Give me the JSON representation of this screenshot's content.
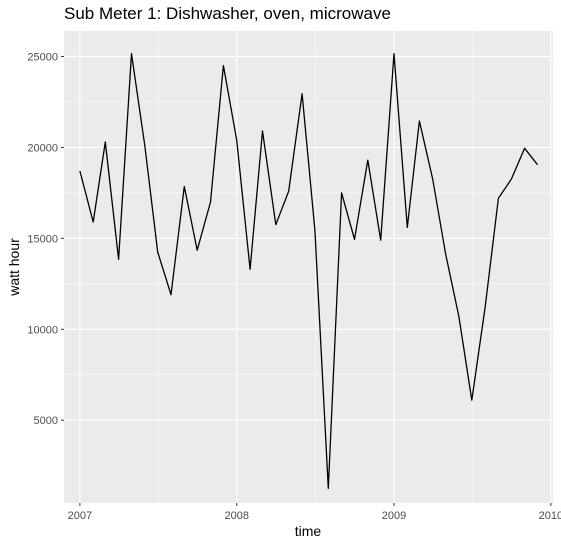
{
  "chart_data": {
    "type": "line",
    "title": "Sub Meter 1: Dishwasher, oven, microwave",
    "xlabel": "time",
    "ylabel": "watt hour",
    "x_axis": {
      "scale": "date",
      "range": [
        "2006-11-25",
        "2010-01-06"
      ],
      "ticks": [
        "2007-01-01",
        "2008-01-01",
        "2009-01-01",
        "2010-01-01"
      ],
      "tick_labels": [
        "2007",
        "2008",
        "2009",
        "2010"
      ]
    },
    "y_axis": {
      "range": [
        450,
        26400
      ],
      "ticks": [
        5000,
        10000,
        15000,
        20000,
        25000
      ],
      "tick_labels": [
        "5000",
        "10000",
        "15000",
        "20000",
        "25000"
      ]
    },
    "grid": true,
    "legend": "none",
    "colors": {
      "panel": "#ebebeb",
      "grid": "#ffffff",
      "line": "#000000"
    },
    "series": [
      {
        "x": [
          "2007-01-01",
          "2007-02-01",
          "2007-03-01",
          "2007-04-01",
          "2007-05-01",
          "2007-06-01",
          "2007-07-01",
          "2007-08-01",
          "2007-09-01",
          "2007-10-01",
          "2007-11-01",
          "2007-12-01",
          "2008-01-01",
          "2008-02-01",
          "2008-03-01",
          "2008-04-01",
          "2008-05-01",
          "2008-06-01",
          "2008-07-01",
          "2008-08-01",
          "2008-09-01",
          "2008-10-01",
          "2008-11-01",
          "2008-12-01",
          "2009-01-01",
          "2009-02-01",
          "2009-03-01",
          "2009-04-01",
          "2009-05-01",
          "2009-06-01",
          "2009-07-01",
          "2009-08-01",
          "2009-09-01",
          "2009-10-01",
          "2009-11-01",
          "2009-12-01"
        ],
        "y": [
          18700,
          15900,
          20300,
          13850,
          25150,
          20100,
          14250,
          11900,
          17850,
          14350,
          17000,
          24500,
          20400,
          13300,
          20900,
          15750,
          17600,
          22950,
          15450,
          1250,
          17500,
          14950,
          19300,
          14900,
          25150,
          15600,
          21450,
          18250,
          14150,
          10700,
          6100,
          11200,
          17200,
          18250,
          19950,
          19050
        ]
      }
    ]
  }
}
